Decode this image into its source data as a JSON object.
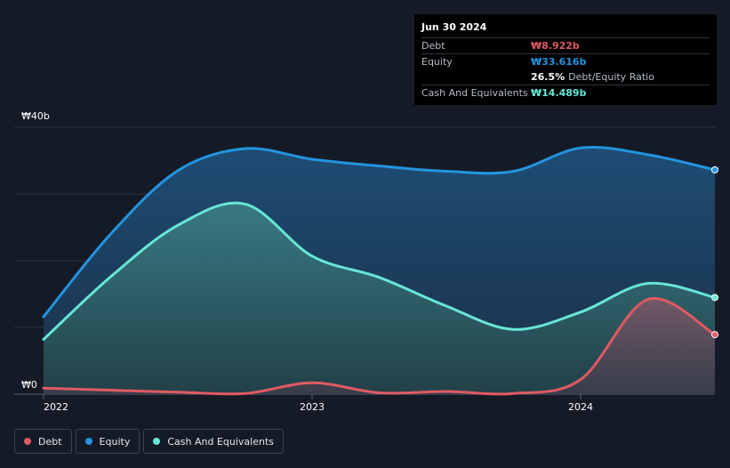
{
  "chart_data": {
    "type": "area",
    "title": "",
    "x_ticks": [
      {
        "label": "2022",
        "value": 2022.0
      },
      {
        "label": "2023",
        "value": 2023.0
      },
      {
        "label": "2024",
        "value": 2024.0
      }
    ],
    "y_ticks": [
      {
        "label": "₩0",
        "value": 0
      },
      {
        "label": "₩40b",
        "value": 40
      }
    ],
    "xlim": [
      2022.0,
      2024.5
    ],
    "ylim": [
      0,
      40
    ],
    "gridlines_y": [
      0,
      10,
      20,
      30,
      40
    ],
    "series": [
      {
        "name": "Equity",
        "color": "#2394df",
        "points": [
          [
            2022.0,
            11.6
          ],
          [
            2022.25,
            24.0
          ],
          [
            2022.5,
            33.5
          ],
          [
            2022.75,
            36.8
          ],
          [
            2023.0,
            35.2
          ],
          [
            2023.25,
            34.2
          ],
          [
            2023.5,
            33.4
          ],
          [
            2023.75,
            33.4
          ],
          [
            2024.0,
            36.9
          ],
          [
            2024.25,
            35.9
          ],
          [
            2024.5,
            33.616
          ]
        ]
      },
      {
        "name": "Cash And Equivalents",
        "color": "#67e6d6",
        "points": [
          [
            2022.0,
            8.2
          ],
          [
            2022.25,
            17.6
          ],
          [
            2022.5,
            25.3
          ],
          [
            2022.75,
            28.5
          ],
          [
            2023.0,
            20.7
          ],
          [
            2023.25,
            17.5
          ],
          [
            2023.5,
            13.2
          ],
          [
            2023.75,
            9.7
          ],
          [
            2024.0,
            12.3
          ],
          [
            2024.25,
            16.6
          ],
          [
            2024.5,
            14.489
          ]
        ]
      },
      {
        "name": "Debt",
        "color": "#e05a63",
        "points": [
          [
            2022.0,
            0.9
          ],
          [
            2022.25,
            0.6
          ],
          [
            2022.5,
            0.3
          ],
          [
            2022.75,
            0.1
          ],
          [
            2023.0,
            1.7
          ],
          [
            2023.25,
            0.2
          ],
          [
            2023.5,
            0.4
          ],
          [
            2023.75,
            0.1
          ],
          [
            2024.0,
            2.2
          ],
          [
            2024.25,
            14.2
          ],
          [
            2024.5,
            8.922
          ]
        ]
      }
    ]
  },
  "tooltip": {
    "date": "Jun 30 2024",
    "debt_label": "Debt",
    "debt_value": "₩8.922b",
    "equity_label": "Equity",
    "equity_value": "₩33.616b",
    "ratio_value": "26.5%",
    "ratio_label": "Debt/Equity Ratio",
    "cash_label": "Cash And Equivalents",
    "cash_value": "₩14.489b"
  },
  "legend": [
    {
      "label": "Debt",
      "color": "#e05a63"
    },
    {
      "label": "Equity",
      "color": "#2394df"
    },
    {
      "label": "Cash And Equivalents",
      "color": "#67e6d6"
    }
  ],
  "colors": {
    "debt": "#e05a63",
    "equity": "#2394df",
    "cash": "#67e6d6",
    "background": "#151b26",
    "tooltip_bg": "#000000"
  }
}
